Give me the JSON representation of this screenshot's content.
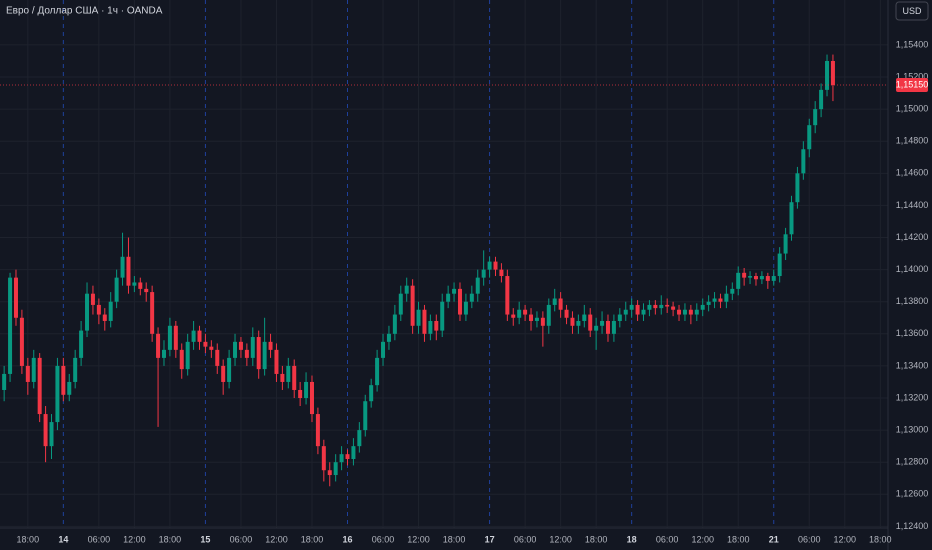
{
  "chart_data": {
    "type": "candlestick",
    "title": "Евро / Доллар США · 1ч · OANDA",
    "currency": "USD",
    "up_color": "#089981",
    "down_color": "#f23645",
    "last_price": {
      "value": 1.1515,
      "label": "1,15150"
    },
    "xlim": [
      -0.7,
      149.3
    ],
    "ylim": [
      1.1239,
      1.1568
    ],
    "grid": true,
    "xticks": [
      {
        "value": 4,
        "label": "18:00"
      },
      {
        "value": 10,
        "label": "14"
      },
      {
        "value": 16,
        "label": "06:00"
      },
      {
        "value": 22,
        "label": "12:00"
      },
      {
        "value": 28,
        "label": "18:00"
      },
      {
        "value": 34,
        "label": "15"
      },
      {
        "value": 40,
        "label": "06:00"
      },
      {
        "value": 46,
        "label": "12:00"
      },
      {
        "value": 52,
        "label": "18:00"
      },
      {
        "value": 58,
        "label": "16"
      },
      {
        "value": 64,
        "label": "06:00"
      },
      {
        "value": 70,
        "label": "12:00"
      },
      {
        "value": 76,
        "label": "18:00"
      },
      {
        "value": 82,
        "label": "17"
      },
      {
        "value": 88,
        "label": "06:00"
      },
      {
        "value": 94,
        "label": "12:00"
      },
      {
        "value": 100,
        "label": "18:00"
      },
      {
        "value": 106,
        "label": "18"
      },
      {
        "value": 112,
        "label": "06:00"
      },
      {
        "value": 118,
        "label": "12:00"
      },
      {
        "value": 124,
        "label": "18:00"
      },
      {
        "value": 130,
        "label": "21"
      },
      {
        "value": 136,
        "label": "06:00"
      },
      {
        "value": 142,
        "label": "12:00"
      },
      {
        "value": 148,
        "label": "18:00"
      }
    ],
    "yticks": [
      {
        "value": 1.124,
        "label": "1,12400"
      },
      {
        "value": 1.126,
        "label": "1,12600"
      },
      {
        "value": 1.128,
        "label": "1,12800"
      },
      {
        "value": 1.13,
        "label": "1,13000"
      },
      {
        "value": 1.132,
        "label": "1,13200"
      },
      {
        "value": 1.134,
        "label": "1,13400"
      },
      {
        "value": 1.136,
        "label": "1,13600"
      },
      {
        "value": 1.138,
        "label": "1,13800"
      },
      {
        "value": 1.14,
        "label": "1,14000"
      },
      {
        "value": 1.142,
        "label": "1,14200"
      },
      {
        "value": 1.144,
        "label": "1,14400"
      },
      {
        "value": 1.146,
        "label": "1,14600"
      },
      {
        "value": 1.148,
        "label": "1,14800"
      },
      {
        "value": 1.15,
        "label": "1,15000"
      },
      {
        "value": 1.152,
        "label": "1,15200"
      },
      {
        "value": 1.154,
        "label": "1,15400"
      }
    ],
    "candles": [
      [
        1.1325,
        1.134,
        1.1318,
        1.1335
      ],
      [
        1.1335,
        1.1398,
        1.133,
        1.1395
      ],
      [
        1.1395,
        1.14,
        1.1365,
        1.137
      ],
      [
        1.137,
        1.1375,
        1.1335,
        1.134
      ],
      [
        1.134,
        1.1345,
        1.1322,
        1.133
      ],
      [
        1.133,
        1.135,
        1.1326,
        1.1345
      ],
      [
        1.1345,
        1.1348,
        1.1305,
        1.131
      ],
      [
        1.131,
        1.1315,
        1.128,
        1.129
      ],
      [
        1.129,
        1.131,
        1.1282,
        1.1305
      ],
      [
        1.1305,
        1.1345,
        1.13,
        1.134
      ],
      [
        1.134,
        1.1345,
        1.1318,
        1.1322
      ],
      [
        1.1322,
        1.1335,
        1.1318,
        1.133
      ],
      [
        1.133,
        1.135,
        1.1326,
        1.1345
      ],
      [
        1.1345,
        1.1368,
        1.134,
        1.1362
      ],
      [
        1.1362,
        1.1392,
        1.1358,
        1.1385
      ],
      [
        1.1385,
        1.139,
        1.1372,
        1.1378
      ],
      [
        1.1378,
        1.1382,
        1.1366,
        1.1372
      ],
      [
        1.1372,
        1.1376,
        1.1362,
        1.1368
      ],
      [
        1.1368,
        1.1386,
        1.1364,
        1.138
      ],
      [
        1.138,
        1.14,
        1.1376,
        1.1395
      ],
      [
        1.1395,
        1.1423,
        1.139,
        1.1408
      ],
      [
        1.1408,
        1.142,
        1.1385,
        1.139
      ],
      [
        1.139,
        1.1396,
        1.1386,
        1.1392
      ],
      [
        1.1392,
        1.1395,
        1.1384,
        1.1388
      ],
      [
        1.1388,
        1.1392,
        1.138,
        1.1386
      ],
      [
        1.1386,
        1.139,
        1.1355,
        1.136
      ],
      [
        1.136,
        1.1364,
        1.1302,
        1.1345
      ],
      [
        1.1345,
        1.1356,
        1.134,
        1.135
      ],
      [
        1.135,
        1.137,
        1.1346,
        1.1365
      ],
      [
        1.1365,
        1.1368,
        1.1345,
        1.135
      ],
      [
        1.135,
        1.1354,
        1.1332,
        1.1338
      ],
      [
        1.1338,
        1.136,
        1.1334,
        1.1355
      ],
      [
        1.1355,
        1.1368,
        1.135,
        1.1362
      ],
      [
        1.1362,
        1.1365,
        1.135,
        1.1355
      ],
      [
        1.1355,
        1.136,
        1.1348,
        1.1352
      ],
      [
        1.1352,
        1.1356,
        1.1345,
        1.135
      ],
      [
        1.135,
        1.1354,
        1.1335,
        1.134
      ],
      [
        1.134,
        1.1344,
        1.1322,
        1.133
      ],
      [
        1.133,
        1.135,
        1.1326,
        1.1345
      ],
      [
        1.1345,
        1.136,
        1.134,
        1.1355
      ],
      [
        1.1355,
        1.1358,
        1.1345,
        1.135
      ],
      [
        1.135,
        1.1354,
        1.134,
        1.1345
      ],
      [
        1.1345,
        1.1364,
        1.134,
        1.1358
      ],
      [
        1.1358,
        1.1362,
        1.1332,
        1.1338
      ],
      [
        1.1338,
        1.137,
        1.1334,
        1.1355
      ],
      [
        1.1355,
        1.136,
        1.1345,
        1.135
      ],
      [
        1.135,
        1.1354,
        1.133,
        1.1335
      ],
      [
        1.1335,
        1.134,
        1.1325,
        1.133
      ],
      [
        1.133,
        1.1345,
        1.1326,
        1.134
      ],
      [
        1.134,
        1.1344,
        1.132,
        1.1325
      ],
      [
        1.1325,
        1.133,
        1.1315,
        1.132
      ],
      [
        1.132,
        1.1336,
        1.1316,
        1.133
      ],
      [
        1.133,
        1.1334,
        1.1305,
        1.131
      ],
      [
        1.131,
        1.1314,
        1.1285,
        1.129
      ],
      [
        1.129,
        1.1294,
        1.1268,
        1.1275
      ],
      [
        1.1275,
        1.128,
        1.1265,
        1.1272
      ],
      [
        1.1272,
        1.1285,
        1.1268,
        1.128
      ],
      [
        1.128,
        1.129,
        1.1275,
        1.1285
      ],
      [
        1.1285,
        1.1288,
        1.1278,
        1.1282
      ],
      [
        1.1282,
        1.1295,
        1.1278,
        1.129
      ],
      [
        1.129,
        1.1305,
        1.1286,
        1.13
      ],
      [
        1.13,
        1.1322,
        1.1296,
        1.1318
      ],
      [
        1.1318,
        1.1332,
        1.1314,
        1.1328
      ],
      [
        1.1328,
        1.135,
        1.1324,
        1.1345
      ],
      [
        1.1345,
        1.136,
        1.134,
        1.1355
      ],
      [
        1.1355,
        1.1365,
        1.135,
        1.136
      ],
      [
        1.136,
        1.1378,
        1.1356,
        1.1372
      ],
      [
        1.1372,
        1.139,
        1.1368,
        1.1385
      ],
      [
        1.1385,
        1.1395,
        1.138,
        1.139
      ],
      [
        1.139,
        1.1394,
        1.136,
        1.1365
      ],
      [
        1.1365,
        1.138,
        1.136,
        1.1375
      ],
      [
        1.1375,
        1.1378,
        1.1355,
        1.136
      ],
      [
        1.136,
        1.1372,
        1.1356,
        1.1368
      ],
      [
        1.1368,
        1.1372,
        1.1356,
        1.1362
      ],
      [
        1.1362,
        1.1385,
        1.1358,
        1.138
      ],
      [
        1.138,
        1.139,
        1.1376,
        1.1385
      ],
      [
        1.1385,
        1.1392,
        1.138,
        1.1388
      ],
      [
        1.1388,
        1.1392,
        1.1368,
        1.1372
      ],
      [
        1.1372,
        1.1385,
        1.1368,
        1.138
      ],
      [
        1.138,
        1.139,
        1.1376,
        1.1385
      ],
      [
        1.1385,
        1.14,
        1.138,
        1.1395
      ],
      [
        1.1395,
        1.1412,
        1.139,
        1.14
      ],
      [
        1.14,
        1.1408,
        1.1395,
        1.1405
      ],
      [
        1.1405,
        1.1408,
        1.1396,
        1.14
      ],
      [
        1.14,
        1.1404,
        1.1392,
        1.1396
      ],
      [
        1.1396,
        1.14,
        1.1368,
        1.1372
      ],
      [
        1.1372,
        1.1376,
        1.1365,
        1.137
      ],
      [
        1.137,
        1.138,
        1.1366,
        1.1375
      ],
      [
        1.1375,
        1.1378,
        1.1368,
        1.1372
      ],
      [
        1.1372,
        1.1376,
        1.1362,
        1.1368
      ],
      [
        1.1368,
        1.1374,
        1.1364,
        1.137
      ],
      [
        1.137,
        1.1374,
        1.1352,
        1.1365
      ],
      [
        1.1365,
        1.1382,
        1.136,
        1.1378
      ],
      [
        1.1378,
        1.1388,
        1.1374,
        1.1382
      ],
      [
        1.1382,
        1.1386,
        1.137,
        1.1375
      ],
      [
        1.1375,
        1.1378,
        1.1366,
        1.137
      ],
      [
        1.137,
        1.1374,
        1.136,
        1.1365
      ],
      [
        1.1365,
        1.1372,
        1.136,
        1.1368
      ],
      [
        1.1368,
        1.1378,
        1.1364,
        1.1372
      ],
      [
        1.1372,
        1.1376,
        1.1358,
        1.1362
      ],
      [
        1.1362,
        1.137,
        1.135,
        1.1365
      ],
      [
        1.1365,
        1.1374,
        1.136,
        1.1368
      ],
      [
        1.1368,
        1.1372,
        1.1355,
        1.136
      ],
      [
        1.136,
        1.1372,
        1.1355,
        1.1368
      ],
      [
        1.1368,
        1.1376,
        1.1364,
        1.1372
      ],
      [
        1.1372,
        1.138,
        1.1368,
        1.1375
      ],
      [
        1.1375,
        1.1382,
        1.137,
        1.1378
      ],
      [
        1.1378,
        1.1381,
        1.1368,
        1.1372
      ],
      [
        1.1372,
        1.1379,
        1.1368,
        1.1375
      ],
      [
        1.1375,
        1.1381,
        1.1371,
        1.1378
      ],
      [
        1.1378,
        1.1381,
        1.1372,
        1.1376
      ],
      [
        1.1376,
        1.1384,
        1.1372,
        1.1378
      ],
      [
        1.1378,
        1.1382,
        1.1373,
        1.1377
      ],
      [
        1.1377,
        1.138,
        1.1371,
        1.1375
      ],
      [
        1.1375,
        1.1378,
        1.1368,
        1.1372
      ],
      [
        1.1372,
        1.1379,
        1.1368,
        1.1375
      ],
      [
        1.1375,
        1.1378,
        1.1366,
        1.1372
      ],
      [
        1.1372,
        1.1379,
        1.1368,
        1.1375
      ],
      [
        1.1375,
        1.1382,
        1.1371,
        1.1378
      ],
      [
        1.1378,
        1.1384,
        1.1374,
        1.138
      ],
      [
        1.138,
        1.1386,
        1.1376,
        1.1382
      ],
      [
        1.1382,
        1.1385,
        1.1376,
        1.138
      ],
      [
        1.138,
        1.139,
        1.1376,
        1.1385
      ],
      [
        1.1385,
        1.1392,
        1.1381,
        1.1388
      ],
      [
        1.1388,
        1.1402,
        1.1384,
        1.1398
      ],
      [
        1.1398,
        1.1401,
        1.139,
        1.1395
      ],
      [
        1.1395,
        1.1399,
        1.1391,
        1.1396
      ],
      [
        1.1396,
        1.1398,
        1.139,
        1.1394
      ],
      [
        1.1394,
        1.1399,
        1.1391,
        1.1396
      ],
      [
        1.1396,
        1.1398,
        1.1388,
        1.1393
      ],
      [
        1.1393,
        1.14,
        1.139,
        1.1396
      ],
      [
        1.1396,
        1.1414,
        1.1392,
        1.141
      ],
      [
        1.141,
        1.1426,
        1.1406,
        1.1422
      ],
      [
        1.1422,
        1.1446,
        1.1418,
        1.1442
      ],
      [
        1.1442,
        1.1464,
        1.1438,
        1.146
      ],
      [
        1.146,
        1.148,
        1.1456,
        1.1475
      ],
      [
        1.1475,
        1.1494,
        1.147,
        1.149
      ],
      [
        1.149,
        1.1505,
        1.1485,
        1.15
      ],
      [
        1.15,
        1.1516,
        1.1495,
        1.1512
      ],
      [
        1.1512,
        1.1534,
        1.1508,
        1.153
      ],
      [
        1.153,
        1.1534,
        1.1505,
        1.1515
      ]
    ]
  }
}
